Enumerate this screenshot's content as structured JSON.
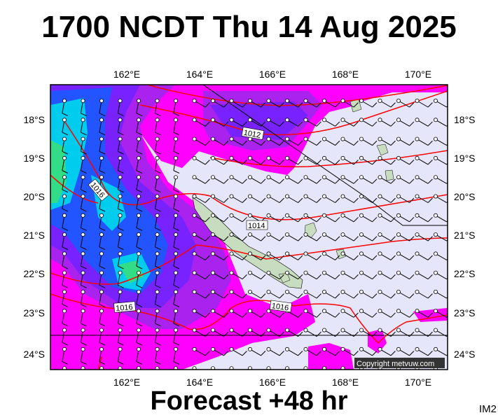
{
  "title": "1700 NCDT Thu 14 Aug 2025",
  "footer": "Forecast +48 hr",
  "corner_label": "IM2",
  "copyright": "Copyright metvuw.com",
  "map": {
    "lon_labels": [
      "162°E",
      "164°E",
      "166°E",
      "168°E",
      "170°E"
    ],
    "lat_labels": [
      "18°S",
      "19°S",
      "20°S",
      "21°S",
      "22°S",
      "23°S",
      "24°S"
    ],
    "isobar_labels": [
      "1012",
      "1014",
      "1016",
      "1016"
    ]
  },
  "colors": {
    "background": "#e6e6fa",
    "magenta": "#ff00ff",
    "purple": "#aa22ee",
    "violet": "#7722ff",
    "blue": "#2255ff",
    "cyan": "#00ccee",
    "green": "#33dd88",
    "isobar": "#ff0000",
    "land": "#c8dcc0"
  }
}
